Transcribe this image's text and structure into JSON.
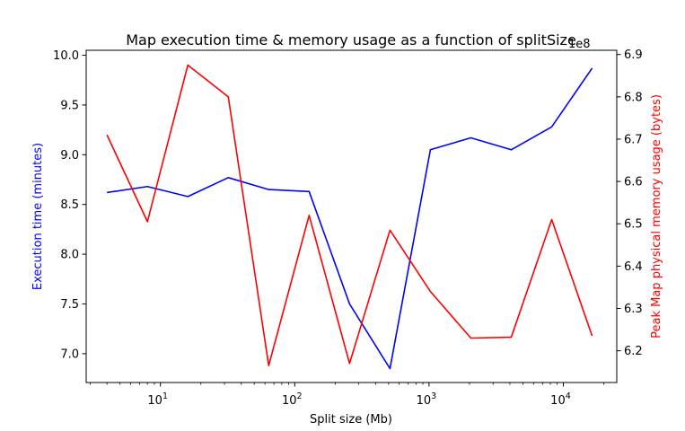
{
  "chart_data": {
    "type": "line",
    "title": "Map execution time & memory usage as a function of splitSize",
    "xlabel": "Split size (Mb)",
    "xscale": "log",
    "xlim": [
      2.8,
      25000
    ],
    "x_ticks": [
      {
        "value": 10,
        "base": "10",
        "exp": "1"
      },
      {
        "value": 100,
        "base": "10",
        "exp": "2"
      },
      {
        "value": 1000,
        "base": "10",
        "exp": "3"
      },
      {
        "value": 10000,
        "base": "10",
        "exp": "4"
      }
    ],
    "x": [
      4,
      8,
      16,
      32,
      64,
      128,
      256,
      512,
      1024,
      2048,
      4096,
      8192,
      16384
    ],
    "y_left": {
      "label": "Execution time (minutes)",
      "color": "#0000ff",
      "ylim": [
        6.71,
        10.05
      ],
      "ticks": [
        "7.0",
        "7.5",
        "8.0",
        "8.5",
        "9.0",
        "9.5",
        "10.0"
      ]
    },
    "y_right": {
      "label": "Peak Map physical memory usage (bytes)",
      "color": "#ff0000",
      "ylim": [
        6.125,
        6.91
      ],
      "ticks": [
        "6.2",
        "6.3",
        "6.4",
        "6.5",
        "6.6",
        "6.7",
        "6.8",
        "6.9"
      ],
      "offset_text": "1e8"
    },
    "series": [
      {
        "axis": "left",
        "color": "#0000ff",
        "values": [
          8.62,
          8.68,
          8.58,
          8.77,
          8.65,
          8.63,
          7.5,
          6.85,
          9.05,
          9.17,
          9.05,
          9.28,
          9.87
        ]
      },
      {
        "axis": "right",
        "color": "#ff0000",
        "values": [
          6.71,
          6.505,
          6.875,
          6.8,
          6.165,
          6.52,
          6.17,
          6.485,
          6.34,
          6.23,
          6.232,
          6.51,
          6.235
        ]
      }
    ],
    "grid": false,
    "legend": "none"
  }
}
